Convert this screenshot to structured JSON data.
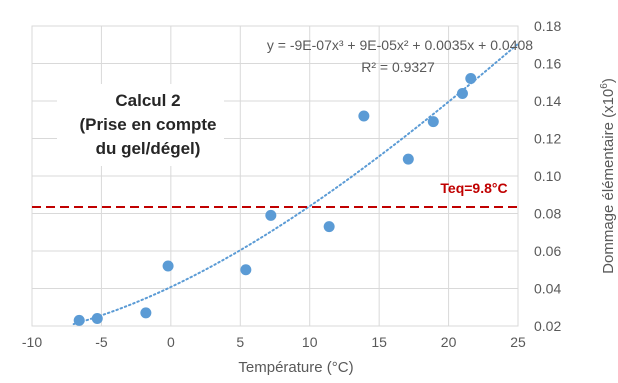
{
  "chart_data": {
    "type": "scatter",
    "xlabel": "Température (°C)",
    "ylabel": "Dommage élémentaire (x10",
    "ylabel_sup": "6",
    "ylabel_close": ")",
    "xlim": [
      -10,
      25
    ],
    "ylim": [
      0.02,
      0.18
    ],
    "x_ticks": [
      "-10",
      "-5",
      "0",
      "5",
      "10",
      "15",
      "20",
      "25"
    ],
    "y_ticks": [
      "0.02",
      "0.04",
      "0.06",
      "0.08",
      "0.10",
      "0.12",
      "0.14",
      "0.16",
      "0.18"
    ],
    "grid": true,
    "y_axis_side": "right",
    "points": [
      {
        "x": -6.6,
        "y": 0.023
      },
      {
        "x": -5.3,
        "y": 0.024
      },
      {
        "x": -1.8,
        "y": 0.027
      },
      {
        "x": -0.2,
        "y": 0.052
      },
      {
        "x": 5.4,
        "y": 0.05
      },
      {
        "x": 7.2,
        "y": 0.079
      },
      {
        "x": 11.4,
        "y": 0.073
      },
      {
        "x": 13.9,
        "y": 0.132
      },
      {
        "x": 17.1,
        "y": 0.109
      },
      {
        "x": 18.9,
        "y": 0.129
      },
      {
        "x": 21.0,
        "y": 0.144
      },
      {
        "x": 21.6,
        "y": 0.152
      }
    ],
    "trendline": {
      "type": "polynomial",
      "order": 3,
      "coefficients": {
        "a3": -9e-07,
        "a2": 9e-05,
        "a1": 0.0035,
        "a0": 0.0408
      },
      "x_range": [
        -7,
        25
      ],
      "equation": "y = -9E-07x³ + 9E-05x² + 0.0035x + 0.0408",
      "r_squared": "R² = 0.9327"
    },
    "reference_line": {
      "y": 0.0835,
      "label": "Teq=9.8°C"
    },
    "annotation_box": {
      "lines": [
        "Calcul 2",
        "(Prise en compte",
        "du gel/dégel)"
      ]
    },
    "colors": {
      "points": "#5b9bd5",
      "trendline": "#5b9bd5",
      "reference": "#c00000",
      "grid": "#d9d9d9",
      "text": "#595959"
    }
  }
}
